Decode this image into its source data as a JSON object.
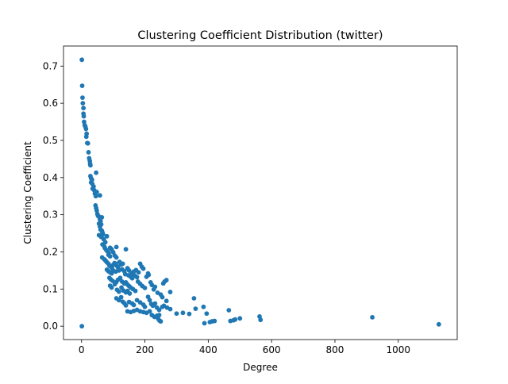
{
  "chart_data": {
    "type": "scatter",
    "title": "Clustering Coefficient Distribution (twitter)",
    "xlabel": "Degree",
    "ylabel": "Clustering Coefficient",
    "xlim": [
      -57,
      1186
    ],
    "ylim": [
      -0.036,
      0.754
    ],
    "xticks": [
      0,
      200,
      400,
      600,
      800,
      1000
    ],
    "yticks": [
      0.0,
      0.1,
      0.2,
      0.3,
      0.4,
      0.5,
      0.6,
      0.7
    ],
    "ytick_labels": [
      "0.0",
      "0.1",
      "0.2",
      "0.3",
      "0.4",
      "0.5",
      "0.6",
      "0.7"
    ],
    "grid": false,
    "marker_color": "#1f77b4",
    "points": [
      [
        1,
        0.717
      ],
      [
        2,
        0.647
      ],
      [
        1,
        0.0
      ],
      [
        3,
        0.615
      ],
      [
        4,
        0.6
      ],
      [
        6,
        0.587
      ],
      [
        6,
        0.572
      ],
      [
        7,
        0.565
      ],
      [
        8,
        0.55
      ],
      [
        10,
        0.541
      ],
      [
        12,
        0.537
      ],
      [
        14,
        0.531
      ],
      [
        16,
        0.518
      ],
      [
        15,
        0.51
      ],
      [
        18,
        0.493
      ],
      [
        20,
        0.492
      ],
      [
        22,
        0.468
      ],
      [
        24,
        0.452
      ],
      [
        26,
        0.445
      ],
      [
        27,
        0.437
      ],
      [
        28,
        0.433
      ],
      [
        28,
        0.404
      ],
      [
        30,
        0.398
      ],
      [
        33,
        0.394
      ],
      [
        30,
        0.387
      ],
      [
        34,
        0.383
      ],
      [
        38,
        0.376
      ],
      [
        35,
        0.37
      ],
      [
        40,
        0.366
      ],
      [
        42,
        0.357
      ],
      [
        48,
        0.361
      ],
      [
        45,
        0.35
      ],
      [
        46,
        0.413
      ],
      [
        58,
        0.352
      ],
      [
        44,
        0.325
      ],
      [
        46,
        0.318
      ],
      [
        48,
        0.311
      ],
      [
        50,
        0.302
      ],
      [
        52,
        0.297
      ],
      [
        55,
        0.295
      ],
      [
        58,
        0.288
      ],
      [
        60,
        0.283
      ],
      [
        64,
        0.293
      ],
      [
        62,
        0.274
      ],
      [
        55,
        0.276
      ],
      [
        58,
        0.268
      ],
      [
        60,
        0.26
      ],
      [
        64,
        0.257
      ],
      [
        66,
        0.252
      ],
      [
        68,
        0.247
      ],
      [
        55,
        0.245
      ],
      [
        62,
        0.24
      ],
      [
        70,
        0.234
      ],
      [
        75,
        0.226
      ],
      [
        80,
        0.242
      ],
      [
        66,
        0.22
      ],
      [
        72,
        0.214
      ],
      [
        74,
        0.21
      ],
      [
        78,
        0.205
      ],
      [
        82,
        0.201
      ],
      [
        86,
        0.197
      ],
      [
        90,
        0.211
      ],
      [
        95,
        0.207
      ],
      [
        100,
        0.199
      ],
      [
        110,
        0.213
      ],
      [
        85,
        0.192
      ],
      [
        90,
        0.188
      ],
      [
        105,
        0.19
      ],
      [
        110,
        0.185
      ],
      [
        65,
        0.185
      ],
      [
        72,
        0.18
      ],
      [
        76,
        0.176
      ],
      [
        80,
        0.172
      ],
      [
        85,
        0.168
      ],
      [
        88,
        0.163
      ],
      [
        92,
        0.16
      ],
      [
        96,
        0.157
      ],
      [
        100,
        0.165
      ],
      [
        104,
        0.17
      ],
      [
        108,
        0.168
      ],
      [
        112,
        0.162
      ],
      [
        115,
        0.158
      ],
      [
        120,
        0.173
      ],
      [
        125,
        0.166
      ],
      [
        130,
        0.168
      ],
      [
        140,
        0.207
      ],
      [
        80,
        0.152
      ],
      [
        85,
        0.148
      ],
      [
        90,
        0.145
      ],
      [
        95,
        0.142
      ],
      [
        100,
        0.15
      ],
      [
        108,
        0.147
      ],
      [
        118,
        0.15
      ],
      [
        128,
        0.153
      ],
      [
        135,
        0.148
      ],
      [
        145,
        0.156
      ],
      [
        150,
        0.15
      ],
      [
        158,
        0.143
      ],
      [
        165,
        0.147
      ],
      [
        172,
        0.151
      ],
      [
        180,
        0.145
      ],
      [
        185,
        0.168
      ],
      [
        190,
        0.16
      ],
      [
        195,
        0.155
      ],
      [
        138,
        0.14
      ],
      [
        148,
        0.137
      ],
      [
        155,
        0.133
      ],
      [
        160,
        0.129
      ],
      [
        168,
        0.136
      ],
      [
        175,
        0.132
      ],
      [
        88,
        0.13
      ],
      [
        92,
        0.126
      ],
      [
        98,
        0.122
      ],
      [
        110,
        0.119
      ],
      [
        115,
        0.125
      ],
      [
        122,
        0.13
      ],
      [
        128,
        0.12
      ],
      [
        135,
        0.115
      ],
      [
        140,
        0.118
      ],
      [
        145,
        0.112
      ],
      [
        150,
        0.108
      ],
      [
        155,
        0.104
      ],
      [
        162,
        0.1
      ],
      [
        170,
        0.095
      ],
      [
        178,
        0.12
      ],
      [
        185,
        0.114
      ],
      [
        192,
        0.108
      ],
      [
        200,
        0.103
      ],
      [
        205,
        0.133
      ],
      [
        210,
        0.142
      ],
      [
        212,
        0.138
      ],
      [
        90,
        0.109
      ],
      [
        95,
        0.104
      ],
      [
        105,
        0.113
      ],
      [
        112,
        0.098
      ],
      [
        118,
        0.093
      ],
      [
        126,
        0.104
      ],
      [
        132,
        0.096
      ],
      [
        140,
        0.091
      ],
      [
        145,
        0.095
      ],
      [
        152,
        0.088
      ],
      [
        218,
        0.118
      ],
      [
        222,
        0.111
      ],
      [
        228,
        0.099
      ],
      [
        232,
        0.106
      ],
      [
        240,
        0.09
      ],
      [
        250,
        0.085
      ],
      [
        258,
        0.115
      ],
      [
        262,
        0.12
      ],
      [
        268,
        0.124
      ],
      [
        255,
        0.078
      ],
      [
        268,
        0.068
      ],
      [
        280,
        0.092
      ],
      [
        110,
        0.075
      ],
      [
        118,
        0.07
      ],
      [
        125,
        0.078
      ],
      [
        130,
        0.066
      ],
      [
        135,
        0.062
      ],
      [
        140,
        0.056
      ],
      [
        150,
        0.065
      ],
      [
        160,
        0.061
      ],
      [
        165,
        0.057
      ],
      [
        175,
        0.07
      ],
      [
        185,
        0.064
      ],
      [
        195,
        0.058
      ],
      [
        200,
        0.052
      ],
      [
        210,
        0.079
      ],
      [
        215,
        0.07
      ],
      [
        220,
        0.06
      ],
      [
        225,
        0.055
      ],
      [
        232,
        0.061
      ],
      [
        238,
        0.05
      ],
      [
        245,
        0.044
      ],
      [
        255,
        0.052
      ],
      [
        260,
        0.055
      ],
      [
        270,
        0.05
      ],
      [
        280,
        0.046
      ],
      [
        145,
        0.04
      ],
      [
        155,
        0.038
      ],
      [
        165,
        0.041
      ],
      [
        175,
        0.044
      ],
      [
        185,
        0.04
      ],
      [
        195,
        0.038
      ],
      [
        205,
        0.036
      ],
      [
        215,
        0.04
      ],
      [
        222,
        0.03
      ],
      [
        230,
        0.025
      ],
      [
        238,
        0.028
      ],
      [
        242,
        0.02
      ],
      [
        246,
        0.015
      ],
      [
        250,
        0.013
      ],
      [
        245,
        0.03
      ],
      [
        300,
        0.034
      ],
      [
        320,
        0.036
      ],
      [
        340,
        0.033
      ],
      [
        355,
        0.075
      ],
      [
        360,
        0.047
      ],
      [
        385,
        0.052
      ],
      [
        395,
        0.034
      ],
      [
        388,
        0.008
      ],
      [
        405,
        0.011
      ],
      [
        412,
        0.013
      ],
      [
        420,
        0.014
      ],
      [
        465,
        0.043
      ],
      [
        470,
        0.014
      ],
      [
        480,
        0.016
      ],
      [
        485,
        0.018
      ],
      [
        500,
        0.021
      ],
      [
        562,
        0.026
      ],
      [
        565,
        0.017
      ],
      [
        918,
        0.024
      ],
      [
        1128,
        0.005
      ]
    ]
  }
}
